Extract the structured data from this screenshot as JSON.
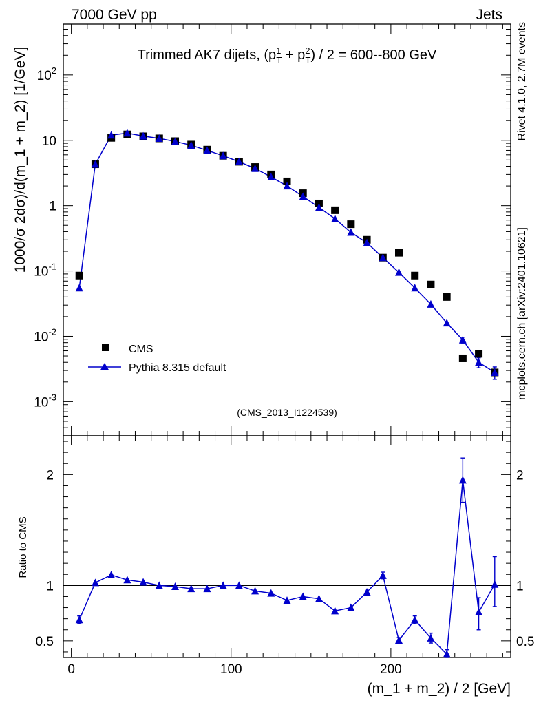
{
  "header": {
    "left": "7000 GeV pp",
    "right": "Jets",
    "title_main": "Trimmed AK7 dijets, (p",
    "title_sup1": "1",
    "title_sub1": "T",
    "title_plus": " + p",
    "title_sup2": "2",
    "title_sub2": "T",
    "title_tail": ") / 2 = 600--800 GeV",
    "analysis_id": "(CMS_2013_I1224539)"
  },
  "side": {
    "rivet": "Rivet 4.1.0,  2.7M events",
    "mcplots": "mcplots.cern.ch [arXiv:2401.10621]"
  },
  "legend": {
    "cms": "CMS",
    "mc": "Pythia 8.315 default"
  },
  "colors": {
    "data": "#000000",
    "mc": "#0000cc",
    "side_text": "#888888",
    "watermark": "#999999"
  },
  "chart_data": [
    {
      "type": "scatter",
      "title": "Trimmed AK7 dijets, (pT1 + pT2) / 2 = 600--800 GeV",
      "ylabel": "1000/σ  2dσ)/d(m_1 + m_2) [1/GeV]",
      "xlabel": "",
      "yscale": "log",
      "xlim": [
        -5,
        275
      ],
      "ylim": [
        0.0003,
        600
      ],
      "x": [
        5,
        15,
        25,
        35,
        45,
        55,
        65,
        75,
        85,
        95,
        105,
        115,
        125,
        135,
        145,
        155,
        165,
        175,
        185,
        195,
        205,
        215,
        225,
        235,
        245,
        255,
        265
      ],
      "y_tick_labels": [
        "10^-3",
        "10^-2",
        "10^-1",
        "1",
        "10",
        "10^2"
      ],
      "series": [
        {
          "name": "CMS",
          "marker": "square",
          "values": [
            0.085,
            4.3,
            10.9,
            12.3,
            11.5,
            10.7,
            9.7,
            8.6,
            7.2,
            5.8,
            4.7,
            3.9,
            3.0,
            2.35,
            1.55,
            1.08,
            0.85,
            0.52,
            0.3,
            0.16,
            0.19,
            0.085,
            0.062,
            0.04,
            0.0046,
            0.0054,
            0.0028
          ]
        },
        {
          "name": "Pythia 8.315 default",
          "marker": "triangle",
          "values": [
            0.055,
            4.3,
            12.0,
            12.9,
            11.6,
            10.7,
            9.6,
            8.4,
            7.0,
            5.8,
            4.7,
            3.7,
            2.75,
            2.0,
            1.38,
            0.94,
            0.63,
            0.39,
            0.27,
            0.16,
            0.095,
            0.055,
            0.031,
            0.016,
            0.0088,
            0.004,
            0.0028
          ],
          "errors": [
            0,
            0,
            0,
            0,
            0,
            0,
            0,
            0,
            0,
            0,
            0,
            0,
            0,
            0,
            0,
            0,
            0,
            0,
            0,
            0,
            0,
            0,
            0,
            0,
            0.0009,
            0.0007,
            0.0006
          ]
        }
      ]
    },
    {
      "type": "line",
      "title": "",
      "ylabel": "Ratio to CMS",
      "xlabel": "(m_1 + m_2) / 2 [GeV]",
      "xlim": [
        -5,
        275
      ],
      "ylim": [
        0.35,
        2.35
      ],
      "y_ticks": [
        0.5,
        1,
        2
      ],
      "y_tick_labels": [
        "0.5",
        "1",
        "2"
      ],
      "x_ticks": [
        0,
        100,
        200
      ],
      "x_tick_labels": [
        "0",
        "100",
        "200"
      ],
      "x": [
        5,
        15,
        25,
        35,
        45,
        55,
        65,
        75,
        85,
        95,
        105,
        115,
        125,
        135,
        145,
        155,
        165,
        175,
        185,
        195,
        205,
        215,
        225,
        235,
        245,
        255,
        265
      ],
      "series": [
        {
          "name": "Pythia 8.315 default",
          "values": [
            0.69,
            1.025,
            1.095,
            1.05,
            1.03,
            1.0,
            0.99,
            0.97,
            0.97,
            1.0,
            1.0,
            0.95,
            0.93,
            0.865,
            0.9,
            0.88,
            0.77,
            0.8,
            0.94,
            1.09,
            0.505,
            0.69,
            0.525,
            0.38,
            1.95,
            0.76,
            1.01
          ],
          "err_low": [
            0.035,
            0,
            0,
            0,
            0,
            0,
            0,
            0,
            0,
            0,
            0,
            0,
            0,
            0,
            0,
            0,
            0,
            0,
            0,
            0.03,
            0.025,
            0.035,
            0.045,
            0.04,
            0.2,
            0.16,
            0.2
          ],
          "err_high": [
            0.035,
            0,
            0,
            0,
            0,
            0,
            0,
            0,
            0,
            0,
            0,
            0,
            0,
            0,
            0,
            0,
            0,
            0,
            0,
            0.03,
            0.025,
            0.035,
            0.045,
            0.04,
            0.2,
            0.13,
            0.25
          ]
        }
      ]
    }
  ]
}
